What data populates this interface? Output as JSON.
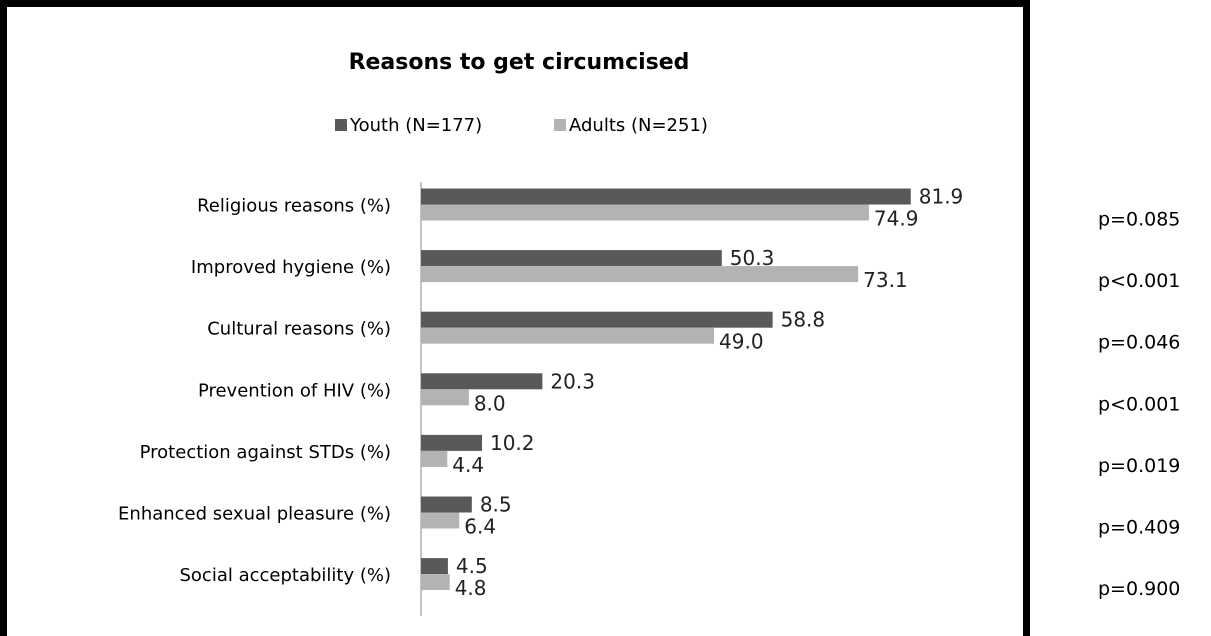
{
  "chart_data": {
    "type": "bar",
    "orientation": "horizontal",
    "title": "Reasons to get circumcised",
    "legend_position": "top",
    "grid": false,
    "xlim": [
      0,
      100
    ],
    "categories": [
      "Religious reasons (%)",
      "Improved hygiene (%)",
      "Cultural reasons (%)",
      "Prevention of HIV (%)",
      "Protection against STDs (%)",
      "Enhanced sexual pleasure (%)",
      "Social acceptability (%)"
    ],
    "series": [
      {
        "name": "Youth (N=177)",
        "color": "#595959",
        "values": [
          81.9,
          50.3,
          58.8,
          20.3,
          10.2,
          8.5,
          4.5
        ]
      },
      {
        "name": "Adults (N=251)",
        "color": "#b3b3b3",
        "values": [
          74.9,
          73.1,
          49.0,
          8.0,
          4.4,
          6.4,
          4.8
        ]
      }
    ],
    "value_labels": [
      [
        "81.9",
        "50.3",
        "58.8",
        "20.3",
        "10.2",
        "8.5",
        "4.5"
      ],
      [
        "74.9",
        "73.1",
        "49.0",
        "8.0",
        "4.4",
        "6.4",
        "4.8"
      ]
    ],
    "p_values": [
      "p=0.085",
      "p<0.001",
      "p=0.046",
      "p<0.001",
      "p=0.019",
      "p=0.409",
      "p=0.900"
    ]
  }
}
